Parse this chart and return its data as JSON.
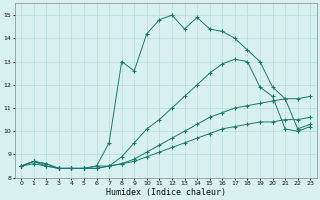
{
  "xlabel": "Humidex (Indice chaleur)",
  "bg_color": "#d8f0ee",
  "line_color": "#1a7a6e",
  "grid_color": "#b8ddd8",
  "xlim": [
    -0.5,
    23.5
  ],
  "ylim": [
    8,
    15.5
  ],
  "xticks": [
    0,
    1,
    2,
    3,
    4,
    5,
    6,
    7,
    8,
    9,
    10,
    11,
    12,
    13,
    14,
    15,
    16,
    17,
    18,
    19,
    20,
    21,
    22,
    23
  ],
  "yticks": [
    8,
    9,
    10,
    11,
    12,
    13,
    14,
    15
  ],
  "series": [
    {
      "x": [
        0,
        1,
        2,
        3,
        4,
        5,
        6,
        7,
        8,
        9,
        10,
        11,
        12,
        13,
        14,
        15,
        16,
        17,
        18,
        19,
        20,
        21,
        22,
        23
      ],
      "y": [
        8.5,
        8.7,
        8.6,
        8.4,
        8.4,
        8.4,
        8.5,
        9.5,
        13.0,
        12.6,
        14.2,
        14.8,
        15.0,
        14.4,
        14.9,
        14.4,
        14.3,
        14.0,
        13.5,
        13.0,
        11.9,
        11.4,
        10.1,
        10.3
      ]
    },
    {
      "x": [
        0,
        1,
        2,
        3,
        4,
        5,
        6,
        7,
        8,
        9,
        10,
        11,
        12,
        13,
        14,
        15,
        16,
        17,
        18,
        19,
        20,
        21,
        22,
        23
      ],
      "y": [
        8.5,
        8.7,
        8.6,
        8.4,
        8.4,
        8.4,
        8.5,
        8.5,
        8.9,
        9.5,
        10.1,
        10.5,
        11.0,
        11.5,
        12.0,
        12.5,
        12.9,
        13.1,
        13.0,
        11.9,
        11.5,
        10.1,
        10.0,
        10.2
      ]
    },
    {
      "x": [
        0,
        1,
        2,
        3,
        4,
        5,
        6,
        7,
        8,
        9,
        10,
        11,
        12,
        13,
        14,
        15,
        16,
        17,
        18,
        19,
        20,
        21,
        22,
        23
      ],
      "y": [
        8.5,
        8.7,
        8.5,
        8.4,
        8.4,
        8.4,
        8.4,
        8.5,
        8.6,
        8.8,
        9.1,
        9.4,
        9.7,
        10.0,
        10.3,
        10.6,
        10.8,
        11.0,
        11.1,
        11.2,
        11.3,
        11.4,
        11.4,
        11.5
      ]
    },
    {
      "x": [
        0,
        1,
        2,
        3,
        4,
        5,
        6,
        7,
        8,
        9,
        10,
        11,
        12,
        13,
        14,
        15,
        16,
        17,
        18,
        19,
        20,
        21,
        22,
        23
      ],
      "y": [
        8.5,
        8.6,
        8.5,
        8.4,
        8.4,
        8.4,
        8.4,
        8.5,
        8.6,
        8.7,
        8.9,
        9.1,
        9.3,
        9.5,
        9.7,
        9.9,
        10.1,
        10.2,
        10.3,
        10.4,
        10.4,
        10.5,
        10.5,
        10.6
      ]
    }
  ]
}
